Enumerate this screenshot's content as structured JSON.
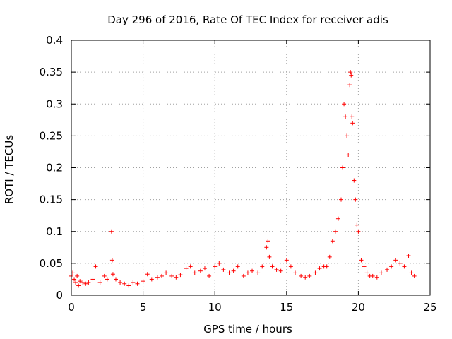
{
  "chart_data": {
    "type": "scatter",
    "title": "Day 296 of 2016, Rate Of TEC Index for receiver adis",
    "xlabel": "GPS time / hours",
    "ylabel": "ROTI / TECUs",
    "xlim": [
      0,
      25
    ],
    "ylim": [
      0,
      0.4
    ],
    "grid": true,
    "marker": "+",
    "color": "#ff0000",
    "xticks": [
      0,
      5,
      10,
      15,
      20,
      25
    ],
    "xtick_labels": [
      "0",
      "5",
      "10",
      "15",
      "20",
      "25"
    ],
    "yticks": [
      0,
      0.05,
      0.1,
      0.15,
      0.2,
      0.25,
      0.3,
      0.35,
      0.4
    ],
    "ytick_labels": [
      "0",
      "0.05",
      "0.1",
      "0.15",
      "0.2",
      "0.25",
      "0.3",
      "0.35",
      "0.4"
    ],
    "series": [
      {
        "name": "ROTI",
        "x": [
          0.0,
          0.1,
          0.2,
          0.3,
          0.4,
          0.5,
          0.6,
          0.8,
          1.0,
          1.2,
          1.5,
          1.7,
          2.0,
          2.3,
          2.5,
          2.8,
          2.85,
          2.9,
          3.1,
          3.4,
          3.7,
          4.0,
          4.3,
          4.6,
          5.0,
          5.3,
          5.6,
          6.0,
          6.3,
          6.6,
          7.0,
          7.3,
          7.6,
          8.0,
          8.3,
          8.6,
          9.0,
          9.3,
          9.6,
          10.0,
          10.3,
          10.6,
          11.0,
          11.3,
          11.6,
          12.0,
          12.3,
          12.6,
          13.0,
          13.3,
          13.6,
          13.7,
          13.8,
          14.0,
          14.3,
          14.6,
          15.0,
          15.3,
          15.6,
          16.0,
          16.3,
          16.6,
          17.0,
          17.3,
          17.6,
          17.8,
          18.0,
          18.2,
          18.4,
          18.6,
          18.8,
          18.9,
          19.0,
          19.1,
          19.2,
          19.3,
          19.4,
          19.45,
          19.5,
          19.55,
          19.6,
          19.7,
          19.8,
          19.9,
          20.0,
          20.2,
          20.4,
          20.6,
          20.8,
          21.0,
          21.3,
          21.6,
          22.0,
          22.3,
          22.6,
          22.9,
          23.2,
          23.5,
          23.7,
          23.9
        ],
        "y": [
          0.03,
          0.035,
          0.025,
          0.02,
          0.03,
          0.015,
          0.022,
          0.02,
          0.018,
          0.02,
          0.025,
          0.045,
          0.02,
          0.03,
          0.025,
          0.1,
          0.055,
          0.033,
          0.025,
          0.02,
          0.018,
          0.015,
          0.02,
          0.018,
          0.022,
          0.033,
          0.025,
          0.028,
          0.03,
          0.035,
          0.03,
          0.028,
          0.032,
          0.042,
          0.045,
          0.035,
          0.038,
          0.042,
          0.03,
          0.045,
          0.05,
          0.04,
          0.035,
          0.038,
          0.045,
          0.03,
          0.035,
          0.038,
          0.035,
          0.045,
          0.075,
          0.085,
          0.06,
          0.045,
          0.04,
          0.038,
          0.055,
          0.045,
          0.035,
          0.03,
          0.028,
          0.03,
          0.035,
          0.042,
          0.045,
          0.045,
          0.06,
          0.085,
          0.1,
          0.12,
          0.15,
          0.2,
          0.3,
          0.28,
          0.25,
          0.22,
          0.33,
          0.35,
          0.345,
          0.28,
          0.27,
          0.18,
          0.15,
          0.11,
          0.1,
          0.055,
          0.045,
          0.035,
          0.03,
          0.03,
          0.028,
          0.035,
          0.04,
          0.045,
          0.055,
          0.05,
          0.045,
          0.062,
          0.035,
          0.03
        ]
      }
    ]
  }
}
